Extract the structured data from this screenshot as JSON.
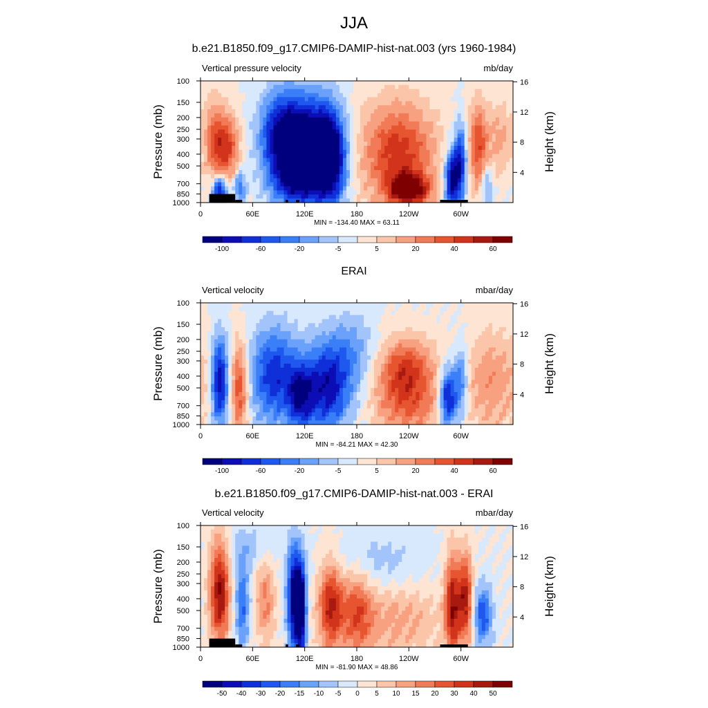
{
  "main_title": "JJA",
  "colors": {
    "scale": [
      "#00007f",
      "#0d0db5",
      "#0f2fd8",
      "#1f58ee",
      "#3b7ff8",
      "#6aa1fb",
      "#a2c4fb",
      "#d8e8fd",
      "#fde4d3",
      "#fbc5a9",
      "#f8a181",
      "#f17b57",
      "#e65530",
      "#d1341b",
      "#a81a10",
      "#7f0000"
    ]
  },
  "chart_data": [
    {
      "type": "heatmap",
      "title": "b.e21.B1850.f09_g17.CMIP6-DAMIP-hist-nat.003 (yrs 1960-1984)",
      "left_label": "Vertical pressure velocity",
      "right_label": "mb/day",
      "ylabel": "Pressure (mb)",
      "y2label": "Height (km)",
      "x_ticks": [
        "0",
        "60E",
        "120E",
        "180",
        "120W",
        "60W"
      ],
      "y_ticks": [
        "100",
        "150",
        "200",
        "250",
        "300",
        "400",
        "500",
        "700",
        "850",
        "1000"
      ],
      "y2_ticks": [
        "16",
        "12",
        "8",
        "4"
      ],
      "stats": "MIN = -134.40  MAX =  63.11",
      "colorbar_labels": [
        "-100",
        "-60",
        "-20",
        "-5",
        "5",
        "20",
        "40",
        "60"
      ],
      "blobs": [
        {
          "lon": 30,
          "p": 350,
          "wl": 10,
          "wp": 0.45,
          "v": 0.65
        },
        {
          "lon": 15,
          "p": 300,
          "wl": 8,
          "wp": 0.6,
          "v": 0.4
        },
        {
          "lon": 22,
          "p": 800,
          "wl": 6,
          "wp": 0.2,
          "v": -0.9
        },
        {
          "lon": 45,
          "p": 750,
          "wl": 5,
          "wp": 0.2,
          "v": -0.5
        },
        {
          "lon": 95,
          "p": 300,
          "wl": 18,
          "wp": 0.6,
          "v": -1.0
        },
        {
          "lon": 130,
          "p": 350,
          "wl": 20,
          "wp": 0.65,
          "v": -1.0
        },
        {
          "lon": 150,
          "p": 450,
          "wl": 12,
          "wp": 0.6,
          "v": -0.9
        },
        {
          "lon": 110,
          "p": 700,
          "wl": 18,
          "wp": 0.3,
          "v": -0.5
        },
        {
          "lon": 228,
          "p": 400,
          "wl": 30,
          "wp": 0.7,
          "v": 0.7
        },
        {
          "lon": 240,
          "p": 780,
          "wl": 16,
          "wp": 0.2,
          "v": 0.9
        },
        {
          "lon": 290,
          "p": 650,
          "wl": 6,
          "wp": 0.4,
          "v": -1.0
        },
        {
          "lon": 300,
          "p": 450,
          "wl": 5,
          "wp": 0.5,
          "v": -0.7
        },
        {
          "lon": 320,
          "p": 350,
          "wl": 8,
          "wp": 0.6,
          "v": 0.6
        },
        {
          "lon": 345,
          "p": 300,
          "wl": 10,
          "wp": 0.5,
          "v": 0.3
        },
        {
          "lon": 330,
          "p": 750,
          "wl": 5,
          "wp": 0.3,
          "v": -0.4
        }
      ],
      "land_mask": [
        [
          10,
          40,
          850
        ],
        [
          40,
          48,
          950
        ],
        [
          98,
          101,
          950
        ],
        [
          110,
          114,
          950
        ],
        [
          276,
          308,
          950
        ]
      ]
    },
    {
      "type": "heatmap",
      "title": "ERAI",
      "left_label": "Vertical velocity",
      "right_label": "mbar/day",
      "ylabel": "Pressure (mb)",
      "y2label": "Height (km)",
      "x_ticks": [
        "0",
        "60E",
        "120E",
        "180",
        "120W",
        "60W"
      ],
      "y_ticks": [
        "100",
        "150",
        "200",
        "250",
        "300",
        "400",
        "500",
        "700",
        "850",
        "1000"
      ],
      "y2_ticks": [
        "16",
        "12",
        "8",
        "4"
      ],
      "stats": "MIN = -84.21  MAX =  42.30",
      "colorbar_labels": [
        "-100",
        "-60",
        "-20",
        "-5",
        "5",
        "20",
        "40",
        "60"
      ],
      "blobs": [
        {
          "lon": 22,
          "p": 450,
          "wl": 7,
          "wp": 0.6,
          "v": -0.9
        },
        {
          "lon": 45,
          "p": 500,
          "wl": 7,
          "wp": 0.6,
          "v": 0.65
        },
        {
          "lon": 85,
          "p": 400,
          "wl": 20,
          "wp": 0.65,
          "v": -0.7
        },
        {
          "lon": 145,
          "p": 500,
          "wl": 20,
          "wp": 0.6,
          "v": -0.8
        },
        {
          "lon": 115,
          "p": 600,
          "wl": 10,
          "wp": 0.4,
          "v": -0.6
        },
        {
          "lon": 236,
          "p": 330,
          "wl": 22,
          "wp": 0.4,
          "v": 0.5
        },
        {
          "lon": 238,
          "p": 650,
          "wl": 28,
          "wp": 0.5,
          "v": 0.5
        },
        {
          "lon": 285,
          "p": 600,
          "wl": 7,
          "wp": 0.4,
          "v": -0.9
        },
        {
          "lon": 300,
          "p": 450,
          "wl": 6,
          "wp": 0.5,
          "v": -0.5
        },
        {
          "lon": 336,
          "p": 450,
          "wl": 25,
          "wp": 0.7,
          "v": 0.35
        },
        {
          "lon": 175,
          "p": 250,
          "wl": 20,
          "wp": 0.5,
          "v": -0.3
        }
      ],
      "land_mask": []
    },
    {
      "type": "heatmap",
      "title": "b.e21.B1850.f09_g17.CMIP6-DAMIP-hist-nat.003 - ERAI",
      "left_label": "Vertical velocity",
      "right_label": "mbar/day",
      "ylabel": "Pressure (mb)",
      "y2label": "Height (km)",
      "x_ticks": [
        "0",
        "60E",
        "120E",
        "180",
        "120W",
        "60W"
      ],
      "y_ticks": [
        "100",
        "150",
        "200",
        "250",
        "300",
        "400",
        "500",
        "700",
        "850",
        "1000"
      ],
      "y2_ticks": [
        "16",
        "12",
        "8",
        "4"
      ],
      "stats": "MIN = -81.90  MAX =  48.86",
      "colorbar_labels": [
        "-50",
        "-40",
        "-30",
        "-20",
        "-15",
        "-10",
        "-5",
        "0",
        "5",
        "10",
        "15",
        "20",
        "30",
        "40",
        "50"
      ],
      "blobs": [
        {
          "lon": 22,
          "p": 350,
          "wl": 8,
          "wp": 0.7,
          "v": 0.9
        },
        {
          "lon": 48,
          "p": 450,
          "wl": 6,
          "wp": 0.6,
          "v": -0.5
        },
        {
          "lon": 75,
          "p": 400,
          "wl": 8,
          "wp": 0.6,
          "v": 0.4
        },
        {
          "lon": 108,
          "p": 400,
          "wl": 6,
          "wp": 0.7,
          "v": -1.0
        },
        {
          "lon": 116,
          "p": 500,
          "wl": 4,
          "wp": 0.6,
          "v": -1.0
        },
        {
          "lon": 150,
          "p": 450,
          "wl": 10,
          "wp": 0.6,
          "v": 0.75
        },
        {
          "lon": 180,
          "p": 500,
          "wl": 12,
          "wp": 0.6,
          "v": 0.5
        },
        {
          "lon": 225,
          "p": 600,
          "wl": 40,
          "wp": 0.5,
          "v": 0.3
        },
        {
          "lon": 290,
          "p": 450,
          "wl": 6,
          "wp": 0.7,
          "v": 0.8
        },
        {
          "lon": 305,
          "p": 400,
          "wl": 6,
          "wp": 0.6,
          "v": 0.8
        },
        {
          "lon": 325,
          "p": 550,
          "wl": 8,
          "wp": 0.4,
          "v": -0.6
        },
        {
          "lon": 60,
          "p": 150,
          "wl": 20,
          "wp": 0.3,
          "v": -0.2
        },
        {
          "lon": 200,
          "p": 200,
          "wl": 40,
          "wp": 0.4,
          "v": -0.2
        }
      ],
      "land_mask": [
        [
          10,
          40,
          850
        ],
        [
          40,
          48,
          950
        ],
        [
          98,
          101,
          950
        ],
        [
          110,
          114,
          950
        ],
        [
          276,
          308,
          950
        ]
      ]
    }
  ]
}
